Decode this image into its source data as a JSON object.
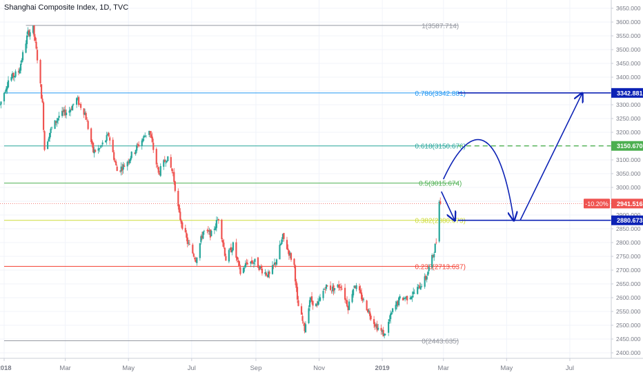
{
  "title": "Shanghai Composite Index, 1D, TVC",
  "colors": {
    "up": "#26a69a",
    "down": "#ef5350",
    "grid": "#f0f3fa",
    "axis_text": "#787b86",
    "arrow": "#0c22b5",
    "price_line": "#ef5350",
    "dashed": "#4caf50"
  },
  "chart_data": {
    "type": "candlestick",
    "ylim": [
      2380,
      3680
    ],
    "x_range": [
      "2017-12-28",
      "2019-08-10"
    ],
    "y_ticks": [
      "2400.000",
      "2450.000",
      "2500.000",
      "2550.000",
      "2600.000",
      "2650.000",
      "2700.000",
      "2750.000",
      "2800.000",
      "2850.000",
      "2900.000",
      "2950.000",
      "3000.000",
      "3050.000",
      "3100.000",
      "3150.000",
      "3200.000",
      "3250.000",
      "3300.000",
      "3350.000",
      "3400.000",
      "3450.000",
      "3500.000",
      "3550.000",
      "3600.000",
      "3650.000"
    ],
    "x_ticks": [
      {
        "label": "2018",
        "date": "2018-01-01"
      },
      {
        "label": "Mar",
        "date": "2018-03-01"
      },
      {
        "label": "May",
        "date": "2018-05-01"
      },
      {
        "label": "Jul",
        "date": "2018-07-01"
      },
      {
        "label": "Sep",
        "date": "2018-09-01"
      },
      {
        "label": "Nov",
        "date": "2018-11-01"
      },
      {
        "label": "2019",
        "date": "2019-01-01"
      },
      {
        "label": "Mar",
        "date": "2019-03-01"
      },
      {
        "label": "May",
        "date": "2019-05-01"
      },
      {
        "label": "Jul",
        "date": "2019-07-01"
      }
    ],
    "path": [
      [
        "2017-12-28",
        3300
      ],
      [
        "2018-01-05",
        3390
      ],
      [
        "2018-01-15",
        3420
      ],
      [
        "2018-01-24",
        3560
      ],
      [
        "2018-01-29",
        3575
      ],
      [
        "2018-02-02",
        3470
      ],
      [
        "2018-02-07",
        3300
      ],
      [
        "2018-02-09",
        3140
      ],
      [
        "2018-02-14",
        3200
      ],
      [
        "2018-02-23",
        3260
      ],
      [
        "2018-03-05",
        3280
      ],
      [
        "2018-03-12",
        3320
      ],
      [
        "2018-03-20",
        3270
      ],
      [
        "2018-03-28",
        3130
      ],
      [
        "2018-04-03",
        3140
      ],
      [
        "2018-04-12",
        3190
      ],
      [
        "2018-04-20",
        3060
      ],
      [
        "2018-04-27",
        3080
      ],
      [
        "2018-05-08",
        3140
      ],
      [
        "2018-05-21",
        3210
      ],
      [
        "2018-05-30",
        3050
      ],
      [
        "2018-06-07",
        3110
      ],
      [
        "2018-06-13",
        3050
      ],
      [
        "2018-06-19",
        2900
      ],
      [
        "2018-06-27",
        2800
      ],
      [
        "2018-07-05",
        2740
      ],
      [
        "2018-07-12",
        2840
      ],
      [
        "2018-07-20",
        2830
      ],
      [
        "2018-07-27",
        2890
      ],
      [
        "2018-08-03",
        2740
      ],
      [
        "2018-08-10",
        2790
      ],
      [
        "2018-08-17",
        2690
      ],
      [
        "2018-08-24",
        2730
      ],
      [
        "2018-08-31",
        2730
      ],
      [
        "2018-09-07",
        2700
      ],
      [
        "2018-09-14",
        2680
      ],
      [
        "2018-09-20",
        2730
      ],
      [
        "2018-09-27",
        2820
      ],
      [
        "2018-10-08",
        2716
      ],
      [
        "2018-10-11",
        2583
      ],
      [
        "2018-10-18",
        2486
      ],
      [
        "2018-10-23",
        2595
      ],
      [
        "2018-10-30",
        2568
      ],
      [
        "2018-11-07",
        2641
      ],
      [
        "2018-11-14",
        2632
      ],
      [
        "2018-11-22",
        2646
      ],
      [
        "2018-11-29",
        2567
      ],
      [
        "2018-12-05",
        2649
      ],
      [
        "2018-12-12",
        2602
      ],
      [
        "2018-12-19",
        2549
      ],
      [
        "2018-12-26",
        2498
      ],
      [
        "2019-01-03",
        2464
      ],
      [
        "2019-01-11",
        2553
      ],
      [
        "2019-01-18",
        2596
      ],
      [
        "2019-01-25",
        2601
      ],
      [
        "2019-02-01",
        2618
      ],
      [
        "2019-02-12",
        2671
      ],
      [
        "2019-02-19",
        2755
      ],
      [
        "2019-02-22",
        2804
      ],
      [
        "2019-02-25",
        2961
      ],
      [
        "2019-02-26",
        2941
      ]
    ],
    "fib_levels": [
      {
        "ratio_label": "1(3587.714)",
        "value": 3587.714,
        "color": "#9598a1",
        "x0": "2018-01-22"
      },
      {
        "ratio_label": "0.786(3342.881)",
        "value": 3342.881,
        "color": "#2196f3",
        "x0": "2018-01-01"
      },
      {
        "ratio_label": "0.618(3150.676)",
        "value": 3150.676,
        "color": "#26a69a",
        "x0": "2018-01-01"
      },
      {
        "ratio_label": "0.5(3015.674)",
        "value": 3015.674,
        "color": "#4caf50",
        "x0": "2018-01-01"
      },
      {
        "ratio_label": "0.382(2880.673)",
        "value": 2880.673,
        "color": "#cddc39",
        "x0": "2018-01-01"
      },
      {
        "ratio_label": "0.236(2713.637)",
        "value": 2713.637,
        "color": "#f44336",
        "x0": "2018-01-01"
      },
      {
        "ratio_label": "0(2443.635)",
        "value": 2443.635,
        "color": "#9598a1",
        "x0": "2018-01-01"
      }
    ],
    "fib_x_end": "2019-03-15",
    "fib_label_x": "2019-02-26",
    "projection": {
      "down_arrow": [
        [
          "2019-02-27",
          2985
        ],
        [
          "2019-03-12",
          2880
        ]
      ],
      "arc": [
        [
          "2019-03-01",
          3030
        ],
        [
          "2019-03-28",
          3150
        ],
        [
          "2019-04-24",
          3080
        ],
        [
          "2019-05-08",
          2880
        ]
      ],
      "up_arrow": [
        [
          "2019-05-14",
          2880
        ],
        [
          "2019-07-13",
          3342
        ]
      ]
    },
    "hlines": [
      {
        "value": 3342.881,
        "from": "2019-03-15",
        "to": "2019-08-10",
        "style": "solid",
        "color": "#0c22b5"
      },
      {
        "value": 2880.673,
        "from": "2019-03-15",
        "to": "2019-08-10",
        "style": "solid",
        "color": "#0c22b5"
      },
      {
        "value": 3150.67,
        "from": "2019-03-15",
        "to": "2019-08-10",
        "style": "dashed",
        "color": "#4caf50"
      }
    ],
    "price_line": {
      "value": 2941.516,
      "change": "-10.20%",
      "label": "2941.516"
    },
    "right_labels": [
      {
        "text": "3342.881",
        "value": 3342.881,
        "bg": "#0c22b5"
      },
      {
        "text": "3150.670",
        "value": 3150.67,
        "bg": "#4caf50"
      },
      {
        "text": "2941.516",
        "value": 2941.516,
        "bg": "#ef5350"
      },
      {
        "text": "2880.673",
        "value": 2880.673,
        "bg": "#0c22b5"
      }
    ]
  }
}
